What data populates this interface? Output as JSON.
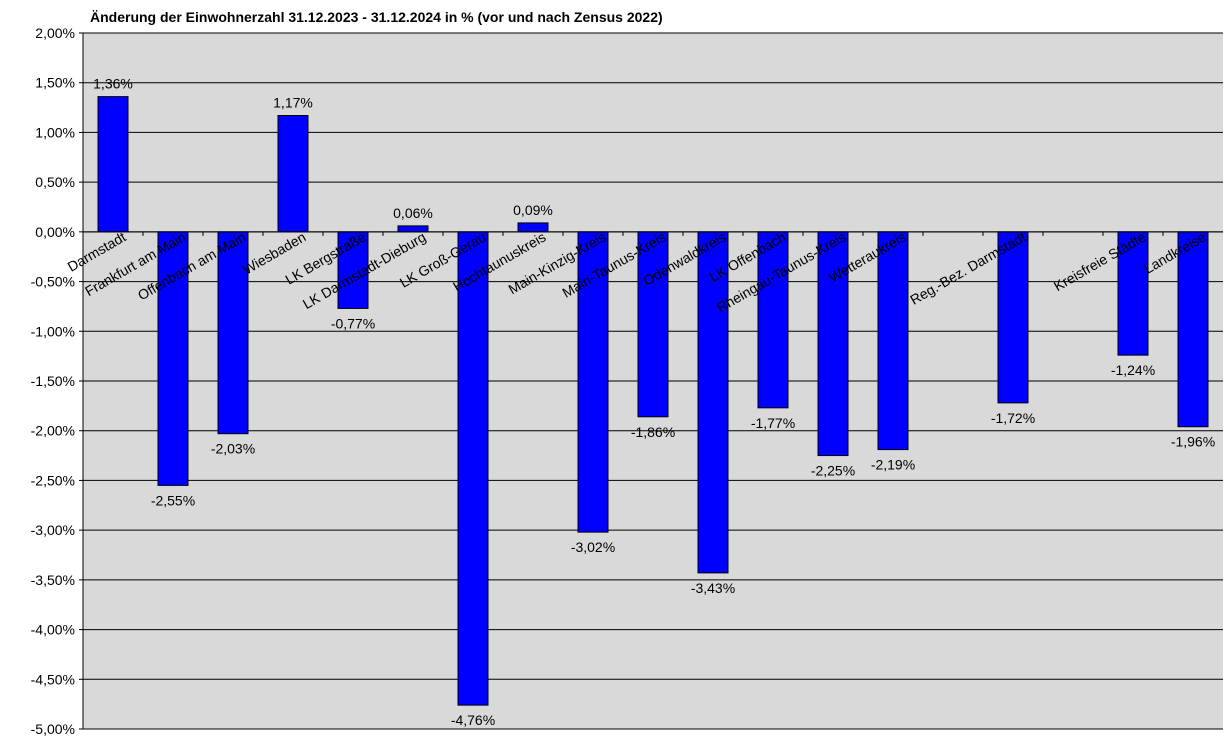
{
  "chart_data": {
    "type": "bar",
    "title": "Änderung der Einwohnerzahl 31.12.2023 - 31.12.2024 in % (vor und nach Zensus 2022)",
    "categories": [
      "Darmstadt",
      "Frankfurt am Main",
      "Offenbach am Main",
      "Wiesbaden",
      "LK Bergstraße",
      "LK Darmstadt-Dieburg",
      "LK Groß-Gerau",
      "Hochtaunuskreis",
      "Main-Kinzig-Kreis",
      "Main-Taunus-Kreis",
      "Odenwaldkreis",
      "LK Offenbach",
      "Rheingau-Taunus-Kreis",
      "Wetteraukreis",
      null,
      "Reg.-Bez. Darmstadt",
      null,
      "Kreisfreie Städte",
      "Landkreise"
    ],
    "values": [
      1.36,
      -2.55,
      -2.03,
      1.17,
      -0.77,
      0.06,
      -4.76,
      0.09,
      -3.02,
      -1.86,
      -3.43,
      -1.77,
      -2.25,
      -2.19,
      null,
      -1.72,
      null,
      -1.24,
      -1.96
    ],
    "value_labels": [
      "1,36%",
      "-2,55%",
      "-2,03%",
      "1,17%",
      "-0,77%",
      "0,06%",
      "-4,76%",
      "0,09%",
      "-3,02%",
      "-1,86%",
      "-3,43%",
      "-1,77%",
      "-2,25%",
      "-2,19%",
      null,
      "-1,72%",
      null,
      "-1,24%",
      "-1,96%"
    ],
    "color": "#0000ff",
    "ylim": [
      -5,
      2
    ],
    "yticks": [
      {
        "value": 2,
        "label": "2,00%"
      },
      {
        "value": 1.5,
        "label": "1,50%"
      },
      {
        "value": 1,
        "label": "1,00%"
      },
      {
        "value": 0.5,
        "label": "0,50%"
      },
      {
        "value": 0,
        "label": "0,00%"
      },
      {
        "value": -0.5,
        "label": "-0,50%"
      },
      {
        "value": -1,
        "label": "-1,00%"
      },
      {
        "value": -1.5,
        "label": "-1,50%"
      },
      {
        "value": -2,
        "label": "-2,00%"
      },
      {
        "value": -2.5,
        "label": "-2,50%"
      },
      {
        "value": -3,
        "label": "-3,00%"
      },
      {
        "value": -3.5,
        "label": "-3,50%"
      },
      {
        "value": -4,
        "label": "-4,00%"
      },
      {
        "value": -4.5,
        "label": "-4,50%"
      },
      {
        "value": -5,
        "label": "-5,00%"
      }
    ],
    "grid": true
  }
}
